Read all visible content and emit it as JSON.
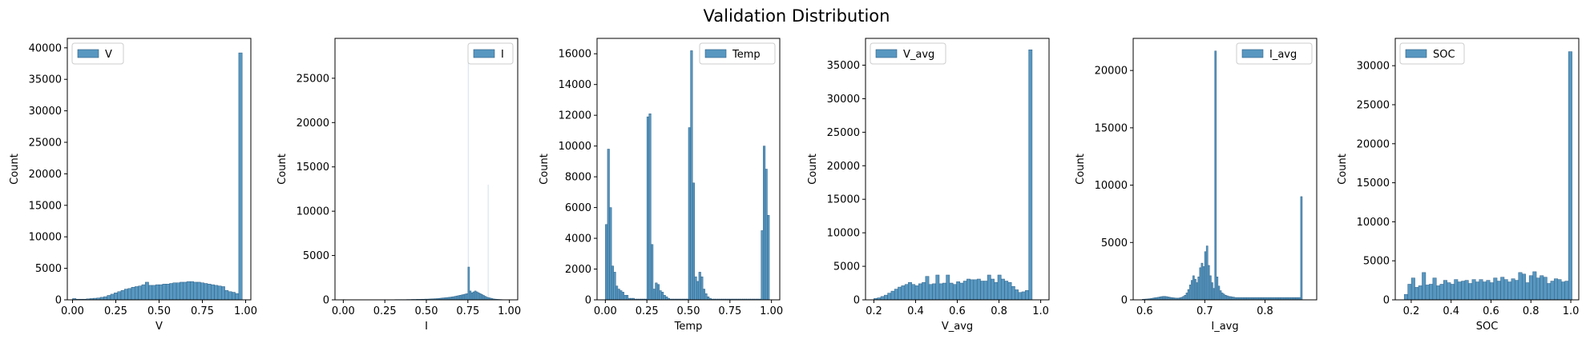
{
  "figure": {
    "title": "Validation Distribution"
  },
  "colors": {
    "bar": "#5897c0",
    "bar_edge": "#2c5f85"
  },
  "chart_data": [
    {
      "type": "bar",
      "xlabel": "V",
      "ylabel": "Count",
      "legend": "V",
      "legend_position": "upper left",
      "xlim": [
        -0.03,
        1.03
      ],
      "ylim": [
        0,
        41500
      ],
      "xticks": [
        0.0,
        0.25,
        0.5,
        0.75,
        1.0
      ],
      "xtick_labels": [
        "0.00",
        "0.25",
        "0.50",
        "0.75",
        "1.00"
      ],
      "yticks": [
        0,
        5000,
        10000,
        15000,
        20000,
        25000,
        30000,
        35000,
        40000
      ],
      "ytick_labels": [
        "0",
        "5000",
        "10000",
        "15000",
        "20000",
        "25000",
        "30000",
        "35000",
        "40000"
      ],
      "bin_start": 0.0,
      "bin_width": 0.02,
      "values": [
        200,
        100,
        100,
        100,
        150,
        200,
        250,
        300,
        400,
        500,
        700,
        900,
        1100,
        1300,
        1500,
        1700,
        1800,
        2000,
        2100,
        2200,
        2400,
        2800,
        2300,
        2300,
        2400,
        2400,
        2500,
        2500,
        2600,
        2700,
        2700,
        2800,
        2800,
        2900,
        2900,
        2800,
        2800,
        2700,
        2600,
        2500,
        2400,
        2300,
        2200,
        2100,
        1500,
        1300,
        1200,
        1000,
        39200
      ]
    },
    {
      "type": "bar",
      "xlabel": "I",
      "ylabel": "Count",
      "legend": "I",
      "legend_position": "upper right",
      "xlim": [
        -0.05,
        1.05
      ],
      "ylim": [
        0,
        29500
      ],
      "xticks": [
        0.0,
        0.25,
        0.5,
        0.75,
        1.0
      ],
      "xtick_labels": [
        "0.00",
        "0.25",
        "0.50",
        "0.75",
        "1.00"
      ],
      "yticks": [
        0,
        5000,
        10000,
        15000,
        20000,
        25000
      ],
      "ytick_labels": [
        "0",
        "5000",
        "10000",
        "15000",
        "20000",
        "25000"
      ],
      "bin_start": 0.0,
      "bin_width": 0.01,
      "values": [
        30,
        20,
        20,
        20,
        20,
        20,
        20,
        20,
        20,
        20,
        20,
        20,
        20,
        20,
        20,
        20,
        20,
        20,
        20,
        20,
        20,
        20,
        20,
        20,
        20,
        20,
        20,
        20,
        20,
        20,
        20,
        30,
        30,
        30,
        30,
        30,
        30,
        30,
        40,
        40,
        40,
        50,
        50,
        50,
        60,
        60,
        60,
        70,
        70,
        80,
        80,
        90,
        100,
        110,
        120,
        130,
        140,
        160,
        180,
        200,
        220,
        240,
        260,
        280,
        300,
        330,
        360,
        400,
        440,
        480,
        520,
        560,
        600,
        650,
        700,
        3700,
        1000,
        800,
        900,
        1000,
        900,
        800,
        700,
        600,
        500,
        400,
        300,
        250,
        200,
        150,
        100,
        80,
        60,
        50,
        40,
        30,
        20,
        20,
        10,
        10
      ],
      "spikes": [
        {
          "x": 0.752,
          "value": 28000
        },
        {
          "x": 0.872,
          "value": 13000
        }
      ]
    },
    {
      "type": "bar",
      "xlabel": "Temp",
      "ylabel": "Count",
      "legend": "Temp",
      "legend_position": "upper right",
      "xlim": [
        -0.05,
        1.05
      ],
      "ylim": [
        0,
        17000
      ],
      "xticks": [
        0.0,
        0.25,
        0.5,
        0.75,
        1.0
      ],
      "xtick_labels": [
        "0.00",
        "0.25",
        "0.50",
        "0.75",
        "1.00"
      ],
      "yticks": [
        0,
        2000,
        4000,
        6000,
        8000,
        10000,
        12000,
        14000,
        16000
      ],
      "ytick_labels": [
        "0",
        "2000",
        "4000",
        "6000",
        "8000",
        "10000",
        "12000",
        "14000",
        "16000"
      ],
      "bin_start": 0.0,
      "bin_width": 0.0125,
      "values": [
        4900,
        9800,
        6000,
        2200,
        1800,
        900,
        700,
        600,
        500,
        300,
        300,
        100,
        100,
        100,
        50,
        50,
        50,
        50,
        50,
        50,
        11900,
        12100,
        3600,
        700,
        1100,
        1000,
        600,
        500,
        300,
        200,
        100,
        50,
        50,
        50,
        50,
        50,
        50,
        50,
        50,
        50,
        11200,
        16200,
        7600,
        1500,
        1200,
        1800,
        1500,
        700,
        400,
        200,
        100,
        50,
        50,
        50,
        50,
        50,
        50,
        50,
        50,
        50,
        50,
        50,
        50,
        50,
        50,
        50,
        50,
        50,
        50,
        50,
        50,
        50,
        50,
        50,
        50,
        4500,
        10000,
        8500,
        5500,
        0
      ]
    },
    {
      "type": "bar",
      "xlabel": "V_avg",
      "ylabel": "Count",
      "legend": "V_avg",
      "legend_position": "upper left",
      "xlim": [
        0.16,
        1.04
      ],
      "ylim": [
        0,
        39000
      ],
      "xticks": [
        0.2,
        0.4,
        0.6,
        0.8,
        1.0
      ],
      "xtick_labels": [
        "0.2",
        "0.4",
        "0.6",
        "0.8",
        "1.0"
      ],
      "yticks": [
        0,
        5000,
        10000,
        15000,
        20000,
        25000,
        30000,
        35000
      ],
      "ytick_labels": [
        "0",
        "5000",
        "10000",
        "15000",
        "20000",
        "25000",
        "30000",
        "35000"
      ],
      "bin_start": 0.2,
      "bin_width": 0.0165,
      "values": [
        200,
        300,
        500,
        700,
        1000,
        1300,
        1600,
        1900,
        2100,
        2300,
        2600,
        2300,
        2100,
        2400,
        2600,
        3500,
        2300,
        2400,
        3700,
        2400,
        2500,
        3700,
        2500,
        2300,
        2700,
        2500,
        2800,
        3100,
        3000,
        3000,
        3100,
        2800,
        2800,
        3700,
        3100,
        2600,
        3700,
        3100,
        2800,
        2600,
        2000,
        1500,
        1100,
        1200,
        1400,
        37300
      ]
    },
    {
      "type": "bar",
      "xlabel": "I_avg",
      "ylabel": "Count",
      "legend": "I_avg",
      "legend_position": "upper right",
      "xlim": [
        0.581,
        0.886
      ],
      "ylim": [
        0,
        22800
      ],
      "xticks": [
        0.6,
        0.7,
        0.8
      ],
      "xtick_labels": [
        "0.6",
        "0.7",
        "0.8"
      ],
      "yticks": [
        0,
        5000,
        10000,
        15000,
        20000
      ],
      "ytick_labels": [
        "0",
        "5000",
        "10000",
        "15000",
        "20000"
      ],
      "bin_start": 0.596,
      "bin_width": 0.0028,
      "values": [
        50,
        60,
        70,
        80,
        100,
        120,
        150,
        180,
        200,
        220,
        250,
        280,
        300,
        300,
        280,
        250,
        220,
        200,
        180,
        160,
        150,
        150,
        180,
        220,
        300,
        400,
        600,
        900,
        1300,
        1700,
        2100,
        1800,
        1500,
        2000,
        2800,
        3200,
        2900,
        4200,
        4700,
        3000,
        2100,
        1500,
        1000,
        21700,
        2000,
        1200,
        800,
        600,
        500,
        400,
        350,
        300,
        280,
        250,
        230,
        200,
        200,
        200,
        200,
        200,
        200,
        200,
        200,
        200,
        200,
        200,
        200,
        200,
        200,
        200,
        200,
        200,
        200,
        200,
        200,
        200,
        200,
        200,
        200,
        200,
        200,
        200,
        200,
        200,
        200,
        200,
        200,
        200,
        200,
        200,
        200,
        200,
        200,
        200,
        9000
      ]
    },
    {
      "type": "bar",
      "xlabel": "SOC",
      "ylabel": "Count",
      "legend": "SOC",
      "legend_position": "upper left",
      "xlim": [
        0.12,
        1.04
      ],
      "ylim": [
        0,
        33500
      ],
      "xticks": [
        0.2,
        0.4,
        0.6,
        0.8,
        1.0
      ],
      "xtick_labels": [
        "0.2",
        "0.4",
        "0.6",
        "0.8",
        "1.0"
      ],
      "yticks": [
        0,
        5000,
        10000,
        15000,
        20000,
        25000,
        30000
      ],
      "ytick_labels": [
        "0",
        "5000",
        "10000",
        "15000",
        "20000",
        "25000",
        "30000"
      ],
      "bin_start": 0.165,
      "bin_width": 0.0179,
      "values": [
        700,
        2000,
        2800,
        1600,
        1800,
        3500,
        1900,
        2000,
        2800,
        1800,
        2000,
        2500,
        2200,
        2000,
        2600,
        2300,
        2400,
        2500,
        2100,
        2600,
        2300,
        2600,
        2300,
        2500,
        2200,
        2800,
        2400,
        2900,
        2600,
        2300,
        2700,
        2500,
        3500,
        3300,
        2200,
        3100,
        3600,
        2800,
        3100,
        2900,
        2100,
        2400,
        2700,
        2600,
        2300,
        2400,
        31800
      ]
    }
  ]
}
